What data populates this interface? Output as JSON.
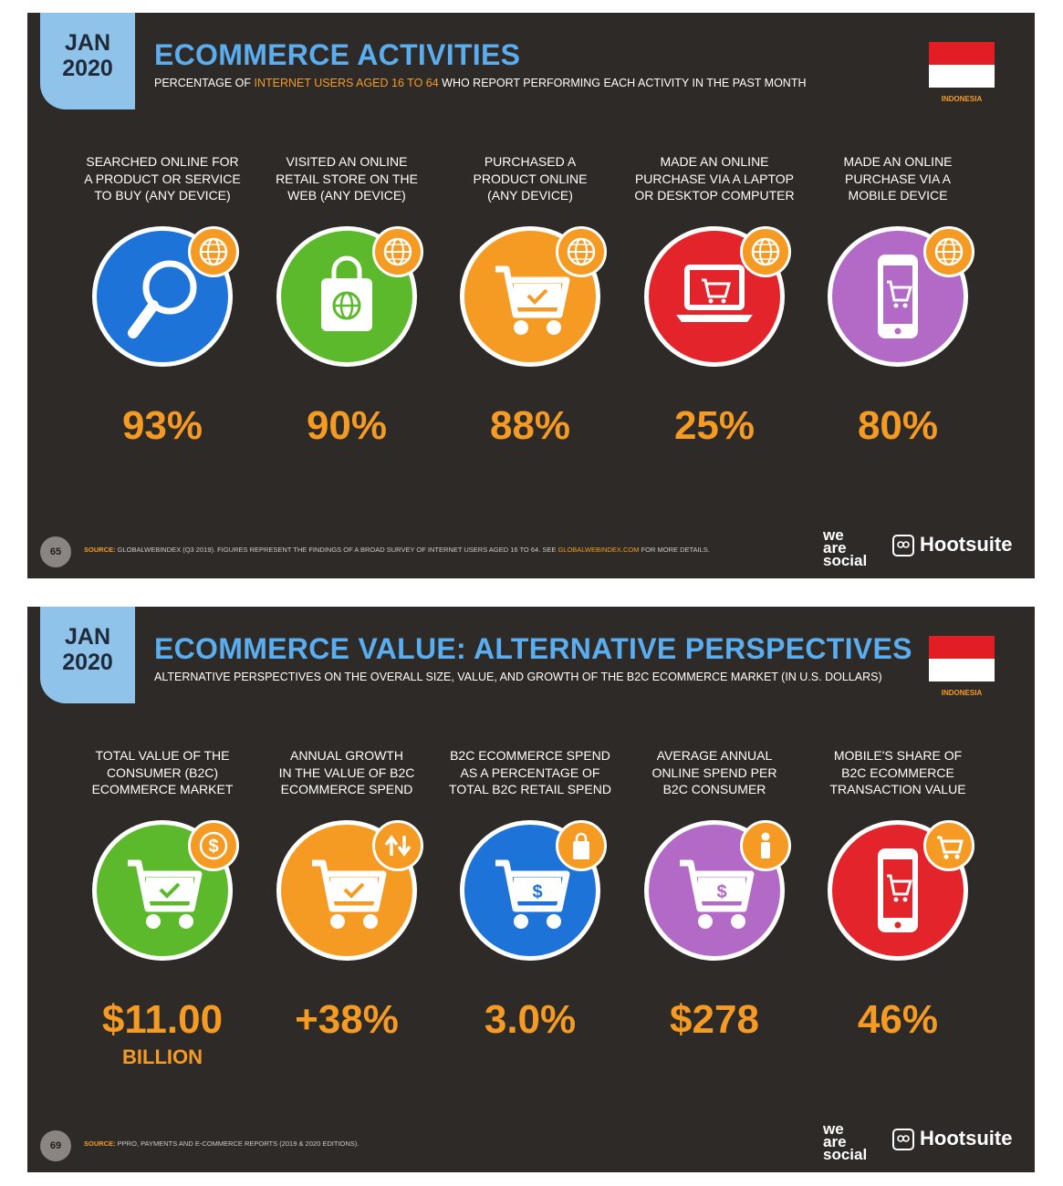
{
  "slides": [
    {
      "date_month": "JAN",
      "date_year": "2020",
      "title": "ECOMMERCE ACTIVITIES",
      "subtitle_pre": "PERCENTAGE OF ",
      "subtitle_hl": "INTERNET USERS AGED 16 TO 64",
      "subtitle_post": " WHO REPORT PERFORMING EACH ACTIVITY IN THE PAST MONTH",
      "country": "INDONESIA",
      "items": [
        {
          "label": "SEARCHED ONLINE FOR\nA PRODUCT OR SERVICE\nTO BUY (ANY DEVICE)",
          "value": "93%",
          "color": "#1e73d8",
          "icon": "magnifier-icon",
          "badge_icon": "globe-icon"
        },
        {
          "label": "VISITED AN ONLINE\nRETAIL STORE ON THE\nWEB (ANY DEVICE)",
          "value": "90%",
          "color": "#5bb92b",
          "icon": "shopping-bag-icon",
          "badge_icon": "globe-icon"
        },
        {
          "label": "PURCHASED A\nPRODUCT ONLINE\n(ANY DEVICE)",
          "value": "88%",
          "color": "#f59b23",
          "icon": "shopping-cart-icon",
          "badge_icon": "globe-icon"
        },
        {
          "label": "MADE AN ONLINE\nPURCHASE VIA A LAPTOP\nOR DESKTOP COMPUTER",
          "value": "25%",
          "color": "#e3242b",
          "icon": "laptop-icon",
          "badge_icon": "globe-icon"
        },
        {
          "label": "MADE AN ONLINE\nPURCHASE VIA A\nMOBILE DEVICE",
          "value": "80%",
          "color": "#b36ac6",
          "icon": "mobile-phone-icon",
          "badge_icon": "globe-icon"
        }
      ],
      "page_number": "65",
      "source_label": "SOURCE:",
      "source_text": " GLOBALWEBINDEX (Q3 2019). FIGURES REPRESENT THE FINDINGS OF A BROAD SURVEY OF INTERNET USERS AGED 16 TO 64. SEE ",
      "source_url": "GLOBALWEBINDEX.COM",
      "source_tail": " FOR MORE DETAILS.",
      "brand1": "we\nare\nsocial",
      "brand2": "Hootsuite"
    },
    {
      "date_month": "JAN",
      "date_year": "2020",
      "title": "ECOMMERCE VALUE: ALTERNATIVE PERSPECTIVES",
      "subtitle": "ALTERNATIVE PERSPECTIVES ON THE OVERALL SIZE, VALUE, AND GROWTH OF THE B2C ECOMMERCE MARKET (IN U.S. DOLLARS)",
      "country": "INDONESIA",
      "items": [
        {
          "label": "TOTAL VALUE OF THE\nCONSUMER (B2C)\nECOMMERCE MARKET",
          "value": "$11.00",
          "unit": "BILLION",
          "color": "#5bb92b",
          "icon": "shopping-cart-icon",
          "badge_icon": "dollar-icon"
        },
        {
          "label": "ANNUAL GROWTH\nIN THE VALUE OF B2C\nECOMMERCE SPEND",
          "value": "+38%",
          "color": "#f59b23",
          "icon": "shopping-cart-icon",
          "badge_icon": "up-down-arrows-icon"
        },
        {
          "label": "B2C ECOMMERCE SPEND\nAS A PERCENTAGE OF\nTOTAL B2C RETAIL SPEND",
          "value": "3.0%",
          "color": "#1e73d8",
          "icon": "shopping-cart-dollar-icon",
          "badge_icon": "shopping-bag-icon"
        },
        {
          "label": "AVERAGE ANNUAL\nONLINE SPEND PER\nB2C CONSUMER",
          "value": "$278",
          "color": "#b36ac6",
          "icon": "shopping-cart-dollar-icon",
          "badge_icon": "person-icon"
        },
        {
          "label": "MOBILE'S SHARE OF\nB2C ECOMMERCE\nTRANSACTION VALUE",
          "value": "46%",
          "color": "#e3242b",
          "icon": "mobile-phone-icon",
          "badge_icon": "shopping-cart-icon"
        }
      ],
      "page_number": "69",
      "source_label": "SOURCE:",
      "source_text": " PPRO, PAYMENTS AND E-COMMERCE REPORTS (2019 & 2020 EDITIONS).",
      "brand1": "we\nare\nsocial",
      "brand2": "Hootsuite"
    }
  ]
}
